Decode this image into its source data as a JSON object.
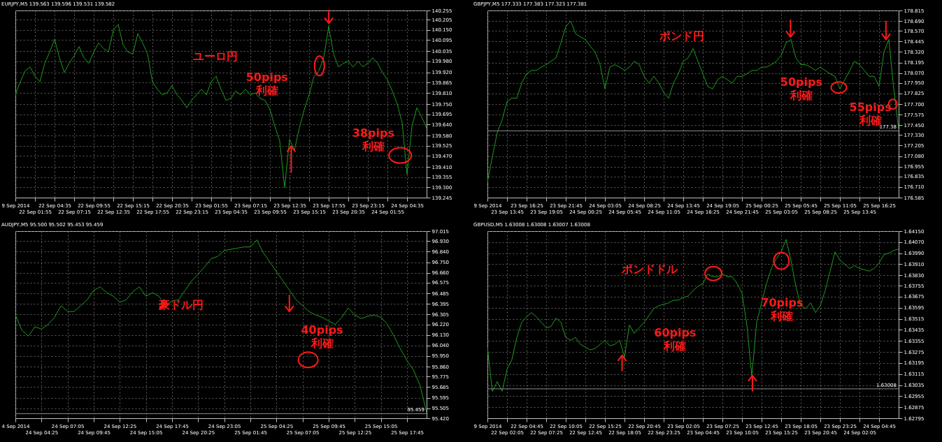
{
  "chart_data": [
    {
      "type": "line",
      "title": "EURJPY,M5 139.563 139.596 139.531 139.582",
      "color": "#1f9a1f",
      "grid": true,
      "categories": [
        "9 Sep 2014",
        null,
        null,
        null,
        "22 Sep 01:55",
        null,
        null,
        null,
        "22 Sep 04:35",
        null,
        null,
        null,
        "22 Sep 07:15",
        null,
        null,
        null,
        "22 Sep 09:55",
        null,
        null,
        null,
        "22 Sep 12:35",
        null,
        null,
        null,
        "22 Sep 15:15",
        null,
        null,
        null,
        "22 Sep 17:55",
        null,
        null,
        null,
        "22 Sep 20:35",
        null,
        null,
        null,
        "22 Sep 23:15",
        null,
        null,
        null,
        "23 Sep 01:55",
        null,
        null,
        null,
        "23 Sep 04:35",
        null,
        null,
        null,
        "23 Sep 07:15",
        null,
        null,
        null,
        "23 Sep 09:55",
        null,
        null,
        null,
        "23 Sep 12:35",
        null,
        null,
        null,
        "23 Sep 15:15",
        null,
        null,
        null,
        "23 Sep 17:55",
        null,
        null,
        null,
        "23 Sep 20:35",
        null,
        null,
        null,
        "23 Sep 23:15",
        null,
        null,
        null,
        "24 Sep 01:55",
        null,
        null,
        null,
        "24 Sep 04:35",
        null,
        null,
        null,
        null
      ],
      "values": [
        139.8,
        139.87,
        139.93,
        139.95,
        139.9,
        139.87,
        139.97,
        140.03,
        140.1,
        140.0,
        139.92,
        139.97,
        140.01,
        140.06,
        140.0,
        139.97,
        140.03,
        140.08,
        140.05,
        140.03,
        140.15,
        140.18,
        140.07,
        140.03,
        140.02,
        140.13,
        140.08,
        140.02,
        139.87,
        139.83,
        139.8,
        139.81,
        139.85,
        139.8,
        139.77,
        139.73,
        139.77,
        139.8,
        139.83,
        139.8,
        139.87,
        139.9,
        139.83,
        139.77,
        139.78,
        139.82,
        139.8,
        139.83,
        139.8,
        139.81,
        139.78,
        139.77,
        139.72,
        139.63,
        139.55,
        139.3,
        139.56,
        139.5,
        139.62,
        139.72,
        139.8,
        139.9,
        139.93,
        140.0,
        140.17,
        140.02,
        139.95,
        139.97,
        139.98,
        139.95,
        139.98,
        139.95,
        139.97,
        140.0,
        139.97,
        139.92,
        139.88,
        139.82,
        139.75,
        139.65,
        139.37,
        139.63,
        139.73,
        139.68,
        139.62
      ],
      "ylim": [
        139.245,
        140.255
      ],
      "yticks": [
        139.245,
        {
          "value": 139.3,
          "label": "139.300"
        },
        139.355,
        {
          "value": 139.41,
          "label": "139.410"
        },
        {
          "value": 139.47,
          "label": "139.470"
        },
        139.525,
        {
          "value": 139.58,
          "label": "139.580"
        },
        {
          "value": 139.64,
          "label": "139.640"
        },
        139.695,
        {
          "value": 139.75,
          "label": "139.750"
        },
        {
          "value": 139.81,
          "label": "139.810"
        },
        139.865,
        {
          "value": 139.92,
          "label": "139.920"
        },
        {
          "value": 139.98,
          "label": "139.980"
        },
        140.035,
        140.095,
        {
          "value": 140.15,
          "label": "140.150"
        },
        140.205,
        140.255
      ],
      "annotations": [
        "ユーロ円",
        "50pips 利確",
        "38pips 利確"
      ]
    },
    {
      "type": "line",
      "title": "GBPJPY,M5 177.333 177.383 177.323 177.381",
      "color": "#1f9a1f",
      "grid": true,
      "categories": [
        "9 Sep 2014",
        null,
        null,
        null,
        "23 Sep 13:45",
        null,
        null,
        null,
        "23 Sep 16:25",
        null,
        null,
        null,
        "23 Sep 19:05",
        null,
        null,
        null,
        "23 Sep 21:45",
        null,
        null,
        null,
        "24 Sep 00:25",
        null,
        null,
        null,
        "24 Sep 03:05",
        null,
        null,
        null,
        "24 Sep 05:45",
        null,
        null,
        null,
        "24 Sep 08:25",
        null,
        null,
        null,
        "24 Sep 11:05",
        null,
        null,
        null,
        "24 Sep 13:45",
        null,
        null,
        null,
        "24 Sep 16:25",
        null,
        null,
        null,
        "24 Sep 19:05",
        null,
        null,
        null,
        "24 Sep 21:45",
        null,
        null,
        null,
        "25 Sep 00:25",
        null,
        null,
        null,
        "25 Sep 03:05",
        null,
        null,
        null,
        "25 Sep 05:45",
        null,
        null,
        null,
        "25 Sep 08:25",
        null,
        null,
        null,
        "25 Sep 11:05",
        null,
        null,
        null,
        "25 Sep 13:45",
        null,
        null,
        null,
        "25 Sep 16:25",
        null,
        null,
        null,
        null
      ],
      "values": [
        176.77,
        177.07,
        177.36,
        177.51,
        177.73,
        177.77,
        177.77,
        177.95,
        178.06,
        178.1,
        178.1,
        178.14,
        178.17,
        178.21,
        178.25,
        178.43,
        178.62,
        178.69,
        178.54,
        178.5,
        178.47,
        178.39,
        178.32,
        178.17,
        177.88,
        178.14,
        178.17,
        178.14,
        178.1,
        178.14,
        178.21,
        178.17,
        178.03,
        177.95,
        178.03,
        177.95,
        177.84,
        177.77,
        177.95,
        178.06,
        178.21,
        178.25,
        178.36,
        178.21,
        178.06,
        177.91,
        177.88,
        177.99,
        178.03,
        177.99,
        177.95,
        178.03,
        178.03,
        178.06,
        178.1,
        178.1,
        178.14,
        178.14,
        178.17,
        178.21,
        178.28,
        178.43,
        178.47,
        178.25,
        178.17,
        178.17,
        178.14,
        178.1,
        178.14,
        178.1,
        178.06,
        178.03,
        177.88,
        177.99,
        178.1,
        178.21,
        178.17,
        178.1,
        178.03,
        178.03,
        177.91,
        178.32,
        178.47,
        177.88,
        177.4
      ],
      "ylim": [
        176.585,
        178.815
      ],
      "yticks": [
        176.585,
        {
          "value": 176.71,
          "label": "176.710"
        },
        176.835,
        176.955,
        {
          "value": 177.08,
          "label": "177.080"
        },
        177.205,
        {
          "value": 177.33,
          "label": "177.330"
        },
        {
          "value": 177.45,
          "label": "177.450"
        },
        177.575,
        {
          "value": 177.7,
          "label": "177.700"
        },
        177.825,
        {
          "value": 177.95,
          "label": "177.950"
        },
        {
          "value": 178.07,
          "label": "178.070"
        },
        178.195,
        {
          "value": 178.32,
          "label": "178.320"
        },
        178.445,
        {
          "value": 178.57,
          "label": "178.570"
        },
        {
          "value": 178.69,
          "label": "178.690"
        },
        178.815
      ],
      "ref_lines": [
        {
          "axis": "y",
          "value": 177.38,
          "label": "177.38",
          "color": "#8c8c8c"
        }
      ],
      "annotations": [
        "ポンド円",
        "50pips 利確",
        "55pips 利確"
      ]
    },
    {
      "type": "line",
      "title": "AUDJPY,M5 95.500 95.502 95.453 95.459",
      "color": "#1f9a1f",
      "grid": true,
      "categories": [
        "4 Sep 2014",
        null,
        null,
        null,
        "24 Sep 04:25",
        null,
        null,
        null,
        "24 Sep 07:05",
        null,
        null,
        null,
        "24 Sep 09:45",
        null,
        null,
        null,
        "24 Sep 12:25",
        null,
        null,
        null,
        "24 Sep 15:05",
        null,
        null,
        null,
        "24 Sep 17:45",
        null,
        null,
        null,
        "24 Sep 20:25",
        null,
        null,
        null,
        "24 Sep 23:05",
        null,
        null,
        null,
        "25 Sep 01:45",
        null,
        null,
        null,
        "25 Sep 04:25",
        null,
        null,
        null,
        "25 Sep 07:05",
        null,
        null,
        null,
        "25 Sep 09:45",
        null,
        null,
        null,
        "25 Sep 12:25",
        null,
        null,
        null,
        "25 Sep 15:05",
        null,
        null,
        null,
        "25 Sep 17:45",
        null,
        null,
        null
      ],
      "values": [
        96.3,
        96.17,
        96.12,
        96.2,
        96.18,
        96.22,
        96.28,
        96.38,
        96.33,
        96.33,
        96.38,
        96.43,
        96.51,
        96.54,
        96.49,
        96.46,
        96.41,
        96.43,
        96.5,
        96.54,
        96.46,
        96.49,
        96.46,
        96.38,
        96.42,
        96.43,
        96.51,
        96.59,
        96.65,
        96.71,
        96.78,
        96.8,
        96.85,
        96.86,
        96.87,
        96.88,
        96.88,
        96.94,
        96.83,
        96.75,
        96.67,
        96.59,
        96.51,
        96.43,
        96.38,
        96.33,
        96.3,
        96.28,
        96.25,
        96.22,
        96.28,
        96.36,
        96.3,
        96.27,
        96.29,
        96.3,
        96.28,
        96.22,
        96.12,
        96.01,
        95.91,
        95.83,
        95.7,
        95.47
      ],
      "ylim": [
        95.42,
        97.015
      ],
      "yticks": [
        {
          "value": 95.42,
          "label": "95.420"
        },
        95.505,
        95.595,
        95.685,
        95.775,
        {
          "value": 95.86,
          "label": "95.860"
        },
        {
          "value": 95.95,
          "label": "95.950"
        },
        {
          "value": 96.04,
          "label": "96.040"
        },
        {
          "value": 96.13,
          "label": "96.130"
        },
        {
          "value": 96.22,
          "label": "96.220"
        },
        96.305,
        96.395,
        96.485,
        96.575,
        {
          "value": 96.66,
          "label": "96.660"
        },
        {
          "value": 96.75,
          "label": "96.750"
        },
        {
          "value": 96.84,
          "label": "96.840"
        },
        {
          "value": 96.93,
          "label": "96.930"
        },
        97.015
      ],
      "ref_lines": [
        {
          "axis": "y",
          "value": 95.459,
          "label": "95.459",
          "color": "#8c8c8c"
        }
      ],
      "annotations": [
        "豪ドル円",
        "40pips 利確"
      ]
    },
    {
      "type": "line",
      "title": "GBPUSD,M5 1.63008 1.63008 1.63007 1.63008",
      "color": "#1f9a1f",
      "grid": true,
      "categories": [
        "9 Sep 2014",
        null,
        null,
        null,
        "22 Sep 02:05",
        null,
        null,
        null,
        "22 Sep 04:45",
        null,
        null,
        null,
        "22 Sep 07:25",
        null,
        null,
        null,
        "22 Sep 10:05",
        null,
        null,
        null,
        "22 Sep 12:45",
        null,
        null,
        null,
        "22 Sep 15:25",
        null,
        null,
        null,
        "22 Sep 18:05",
        null,
        null,
        null,
        "22 Sep 20:45",
        null,
        null,
        null,
        "22 Sep 23:25",
        null,
        null,
        null,
        "23 Sep 02:05",
        null,
        null,
        null,
        "23 Sep 04:45",
        null,
        null,
        null,
        "23 Sep 07:25",
        null,
        null,
        null,
        "23 Sep 10:05",
        null,
        null,
        null,
        "23 Sep 12:45",
        null,
        null,
        null,
        "23 Sep 15:25",
        null,
        null,
        null,
        "23 Sep 18:05",
        null,
        null,
        null,
        "23 Sep 20:45",
        null,
        null,
        null,
        "23 Sep 23:25",
        null,
        null,
        null,
        "24 Sep 02:05",
        null,
        null,
        null,
        "24 Sep 04:45",
        null,
        null,
        null,
        null
      ],
      "values": [
        1.6331,
        1.6299,
        1.6306,
        1.6299,
        1.6315,
        1.6322,
        1.6338,
        1.6349,
        1.6353,
        1.6356,
        1.6353,
        1.6349,
        1.6345,
        1.6346,
        1.6352,
        1.6349,
        1.6338,
        1.6336,
        1.6338,
        1.6333,
        1.6331,
        1.6329,
        1.633,
        1.6333,
        1.6336,
        1.6332,
        1.6333,
        1.6336,
        1.6324,
        1.6347,
        1.6341,
        1.6345,
        1.6349,
        1.6354,
        1.6359,
        1.6361,
        1.6362,
        1.6363,
        1.6365,
        1.6365,
        1.6367,
        1.6368,
        1.6372,
        1.6375,
        1.6377,
        1.6384,
        1.6382,
        1.6382,
        1.6384,
        1.6382,
        1.6382,
        1.6377,
        1.637,
        1.6347,
        1.631,
        1.6349,
        1.6363,
        1.6377,
        1.6388,
        1.6395,
        1.64,
        1.6409,
        1.6394,
        1.6375,
        1.6361,
        1.6359,
        1.6363,
        1.6356,
        1.6361,
        1.6372,
        1.6386,
        1.64,
        1.6394,
        1.6391,
        1.6388,
        1.639,
        1.6388,
        1.6387,
        1.6386,
        1.6388,
        1.6392,
        1.6398,
        1.6399,
        1.6401,
        1.6402
      ],
      "ylim": [
        1.62795,
        1.6415
      ],
      "yticks": [
        1.62795,
        1.62875,
        1.62955,
        1.63035,
        1.63115,
        1.63195,
        1.63275,
        1.63355,
        1.63435,
        1.63515,
        1.63595,
        1.63675,
        1.63755,
        {
          "value": 1.6383,
          "label": "1.63830"
        },
        {
          "value": 1.6391,
          "label": "1.63910"
        },
        {
          "value": 1.6399,
          "label": "1.63990"
        },
        {
          "value": 1.6407,
          "label": "1.64070"
        },
        {
          "value": 1.6415,
          "label": "1.64150"
        }
      ],
      "ref_lines": [
        {
          "axis": "y",
          "value": 1.63008,
          "label": "1.63008",
          "color": "#8c8c8c"
        }
      ],
      "annotations": [
        "ポンドドル",
        "60pips 利確",
        "70pips 利確"
      ]
    }
  ]
}
